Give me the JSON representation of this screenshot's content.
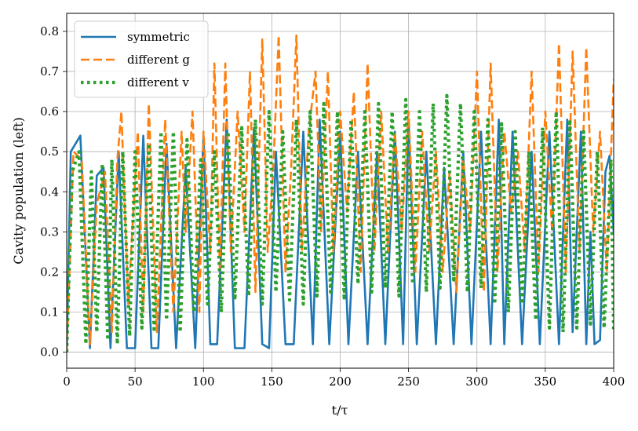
{
  "chart_data": {
    "type": "line",
    "xlabel": "t/τ",
    "ylabel": "Cavity population (left)",
    "xlim": [
      0,
      400
    ],
    "ylim": [
      -0.04,
      0.845
    ],
    "xticks": [
      0,
      50,
      100,
      150,
      200,
      250,
      300,
      350,
      400
    ],
    "yticks": [
      0.0,
      0.1,
      0.2,
      0.3,
      0.4,
      0.5,
      0.6,
      0.7,
      0.8
    ],
    "grid": true,
    "legend_position": "top-left",
    "series": [
      {
        "name": "symmetric",
        "style": "solid",
        "color": "#1f77b4",
        "x": [
          0,
          3,
          10,
          17,
          22,
          27,
          32,
          38,
          44,
          50,
          56,
          62,
          67,
          73,
          80,
          87,
          94,
          100,
          105,
          110,
          117,
          123,
          130,
          137,
          143,
          148,
          153,
          160,
          166,
          173,
          180,
          185,
          192,
          200,
          206,
          213,
          220,
          227,
          233,
          240,
          246,
          250,
          256,
          263,
          270,
          276,
          283,
          290,
          296,
          303,
          310,
          316,
          320,
          326,
          333,
          340,
          346,
          353,
          360,
          366,
          370,
          376,
          380,
          383,
          386,
          390,
          394,
          397,
          400
        ],
        "values": [
          0,
          0.5,
          0.54,
          0.01,
          0.44,
          0.46,
          0.01,
          0.5,
          0.01,
          0.01,
          0.54,
          0.01,
          0.01,
          0.52,
          0.01,
          0.46,
          0.01,
          0.54,
          0.02,
          0.02,
          0.58,
          0.01,
          0.01,
          0.56,
          0.02,
          0.01,
          0.5,
          0.02,
          0.02,
          0.55,
          0.02,
          0.58,
          0.02,
          0.55,
          0.02,
          0.5,
          0.02,
          0.5,
          0.02,
          0.55,
          0.02,
          0.58,
          0.02,
          0.5,
          0.02,
          0.46,
          0.02,
          0.5,
          0.02,
          0.55,
          0.02,
          0.58,
          0.02,
          0.55,
          0.02,
          0.5,
          0.02,
          0.55,
          0.02,
          0.58,
          0.05,
          0.55,
          0.02,
          0.3,
          0.02,
          0.03,
          0.45,
          0.49,
          0.3
        ]
      },
      {
        "name": "different g",
        "style": "dashed",
        "color": "#ff7f0e",
        "x": [
          0,
          5,
          11,
          17,
          22,
          28,
          33,
          37,
          40,
          45,
          52,
          56,
          60,
          66,
          72,
          78,
          84,
          87,
          92,
          97,
          100,
          105,
          108,
          112,
          116,
          120,
          125,
          130,
          134,
          138,
          143,
          147,
          151,
          155,
          160,
          164,
          168,
          172,
          177,
          182,
          186,
          191,
          195,
          200,
          205,
          210,
          215,
          220,
          225,
          230,
          235,
          240,
          245,
          250,
          255,
          260,
          265,
          270,
          275,
          280,
          285,
          290,
          295,
          300,
          305,
          310,
          315,
          320,
          325,
          330,
          335,
          340,
          345,
          350,
          355,
          360,
          365,
          370,
          375,
          380,
          385,
          390,
          395,
          400
        ],
        "values": [
          0,
          0.5,
          0.48,
          0.02,
          0.37,
          0.45,
          0.05,
          0.48,
          0.6,
          0.12,
          0.55,
          0.1,
          0.62,
          0.05,
          0.58,
          0.1,
          0.55,
          0.3,
          0.6,
          0.1,
          0.55,
          0.25,
          0.72,
          0.2,
          0.72,
          0.25,
          0.6,
          0.3,
          0.7,
          0.15,
          0.78,
          0.25,
          0.45,
          0.79,
          0.2,
          0.45,
          0.79,
          0.25,
          0.55,
          0.7,
          0.3,
          0.7,
          0.25,
          0.6,
          0.35,
          0.65,
          0.2,
          0.72,
          0.25,
          0.6,
          0.25,
          0.55,
          0.3,
          0.6,
          0.2,
          0.55,
          0.25,
          0.5,
          0.2,
          0.45,
          0.15,
          0.48,
          0.3,
          0.7,
          0.15,
          0.72,
          0.2,
          0.55,
          0.35,
          0.5,
          0.25,
          0.7,
          0.2,
          0.6,
          0.3,
          0.77,
          0.2,
          0.75,
          0.25,
          0.76,
          0.3,
          0.55,
          0.2,
          0.68
        ]
      },
      {
        "name": "different v",
        "style": "dotted",
        "color": "#2ca02c",
        "x": [
          0,
          4,
          9,
          14,
          18,
          22,
          26,
          30,
          33,
          37,
          41,
          46,
          50,
          55,
          60,
          64,
          69,
          73,
          78,
          83,
          88,
          93,
          98,
          103,
          108,
          113,
          118,
          123,
          128,
          133,
          138,
          143,
          148,
          153,
          158,
          163,
          168,
          173,
          178,
          183,
          188,
          193,
          198,
          203,
          208,
          213,
          218,
          223,
          228,
          233,
          238,
          243,
          248,
          253,
          258,
          263,
          268,
          273,
          278,
          283,
          288,
          293,
          298,
          303,
          308,
          313,
          318,
          323,
          328,
          333,
          338,
          343,
          348,
          353,
          358,
          363,
          368,
          373,
          378,
          383,
          388,
          393,
          398,
          400
        ],
        "values": [
          0,
          0.45,
          0.5,
          0.02,
          0.45,
          0.05,
          0.47,
          0.03,
          0.48,
          0.02,
          0.5,
          0.04,
          0.5,
          0.06,
          0.52,
          0.05,
          0.55,
          0.08,
          0.55,
          0.05,
          0.53,
          0.1,
          0.48,
          0.12,
          0.5,
          0.1,
          0.55,
          0.13,
          0.56,
          0.14,
          0.58,
          0.12,
          0.6,
          0.15,
          0.55,
          0.13,
          0.58,
          0.12,
          0.6,
          0.14,
          0.62,
          0.15,
          0.6,
          0.13,
          0.58,
          0.17,
          0.6,
          0.15,
          0.62,
          0.16,
          0.6,
          0.14,
          0.63,
          0.17,
          0.6,
          0.15,
          0.62,
          0.16,
          0.64,
          0.18,
          0.62,
          0.15,
          0.6,
          0.16,
          0.58,
          0.12,
          0.57,
          0.1,
          0.55,
          0.12,
          0.5,
          0.08,
          0.56,
          0.06,
          0.6,
          0.05,
          0.58,
          0.06,
          0.55,
          0.07,
          0.5,
          0.06,
          0.48,
          0.05
        ]
      }
    ]
  }
}
